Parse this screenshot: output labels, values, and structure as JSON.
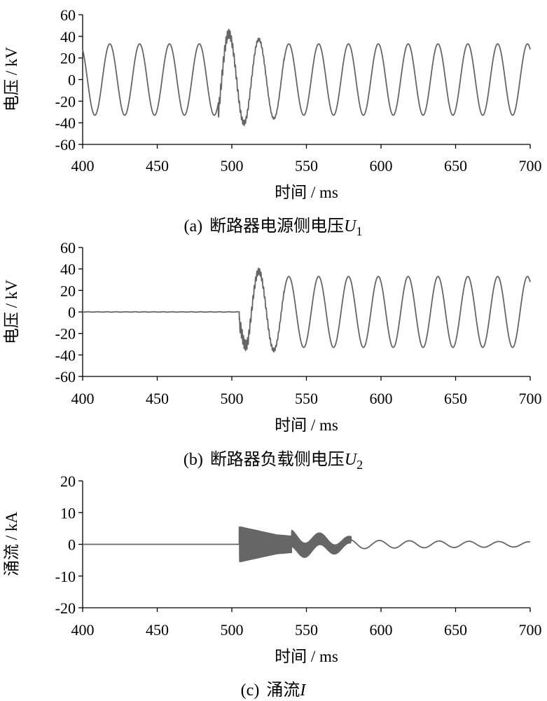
{
  "chart_data": [
    {
      "type": "line",
      "caption_prefix": "(a)",
      "caption_text": "断路器电源侧电压",
      "caption_var": "U",
      "caption_sub": "1",
      "xlabel": "时间 / ms",
      "ylabel": "电压 / kV",
      "xlim": [
        400,
        700
      ],
      "ylim": [
        -60,
        60
      ],
      "xticks": [
        400,
        450,
        500,
        550,
        600,
        650,
        700
      ],
      "yticks": [
        60,
        40,
        20,
        0,
        -20,
        -40,
        -60
      ],
      "grid": false,
      "line_color": "#666666",
      "series_model": {
        "frequency_hz": 50,
        "steady_amplitude": 33,
        "zero_before_ms": null,
        "disturbance_start_ms": 491,
        "disturbance_end_ms": 528,
        "transient_peaks": [
          {
            "x": 491,
            "y": 48
          },
          {
            "x": 500,
            "y": -41
          },
          {
            "x": 511,
            "y": 40
          },
          {
            "x": 521,
            "y": -36
          },
          {
            "x": 531,
            "y": 36
          }
        ]
      }
    },
    {
      "type": "line",
      "caption_prefix": "(b)",
      "caption_text": "断路器负载侧电压",
      "caption_var": "U",
      "caption_sub": "2",
      "xlabel": "时间 / ms",
      "ylabel": "电压 / kV",
      "xlim": [
        400,
        700
      ],
      "ylim": [
        -60,
        60
      ],
      "xticks": [
        400,
        450,
        500,
        550,
        600,
        650,
        700
      ],
      "yticks": [
        60,
        40,
        20,
        0,
        -20,
        -40,
        -60
      ],
      "grid": false,
      "line_color": "#666666",
      "series_model": {
        "frequency_hz": 50,
        "steady_amplitude": 33,
        "zero_before_ms": 505,
        "transient_peaks": [
          {
            "x": 506,
            "y": -20
          },
          {
            "x": 511,
            "y": 40
          },
          {
            "x": 521,
            "y": -37
          },
          {
            "x": 531,
            "y": 35
          }
        ]
      }
    },
    {
      "type": "line",
      "caption_prefix": "(c)",
      "caption_text": "涌流",
      "caption_var": "I",
      "caption_sub": "",
      "xlabel": "时间 / ms",
      "ylabel": "涌流 / kA",
      "xlim": [
        400,
        700
      ],
      "ylim": [
        -20,
        20
      ],
      "xticks": [
        400,
        450,
        500,
        550,
        600,
        650,
        700
      ],
      "yticks": [
        20,
        10,
        0,
        -10,
        -20
      ],
      "grid": false,
      "line_color": "#666666",
      "series_model": {
        "frequency_hz": 50,
        "zero_before_ms": 505,
        "initial_peak": 6,
        "hf_envelope": [
          {
            "x": 506,
            "y": 5.5
          },
          {
            "x": 530,
            "y": 3.0
          },
          {
            "x": 560,
            "y": 1.8
          },
          {
            "x": 580,
            "y": 1.0
          }
        ],
        "lf_envelope": [
          {
            "x": 540,
            "y": 2.0
          },
          {
            "x": 600,
            "y": 1.2
          },
          {
            "x": 700,
            "y": 0.8
          }
        ]
      }
    }
  ]
}
